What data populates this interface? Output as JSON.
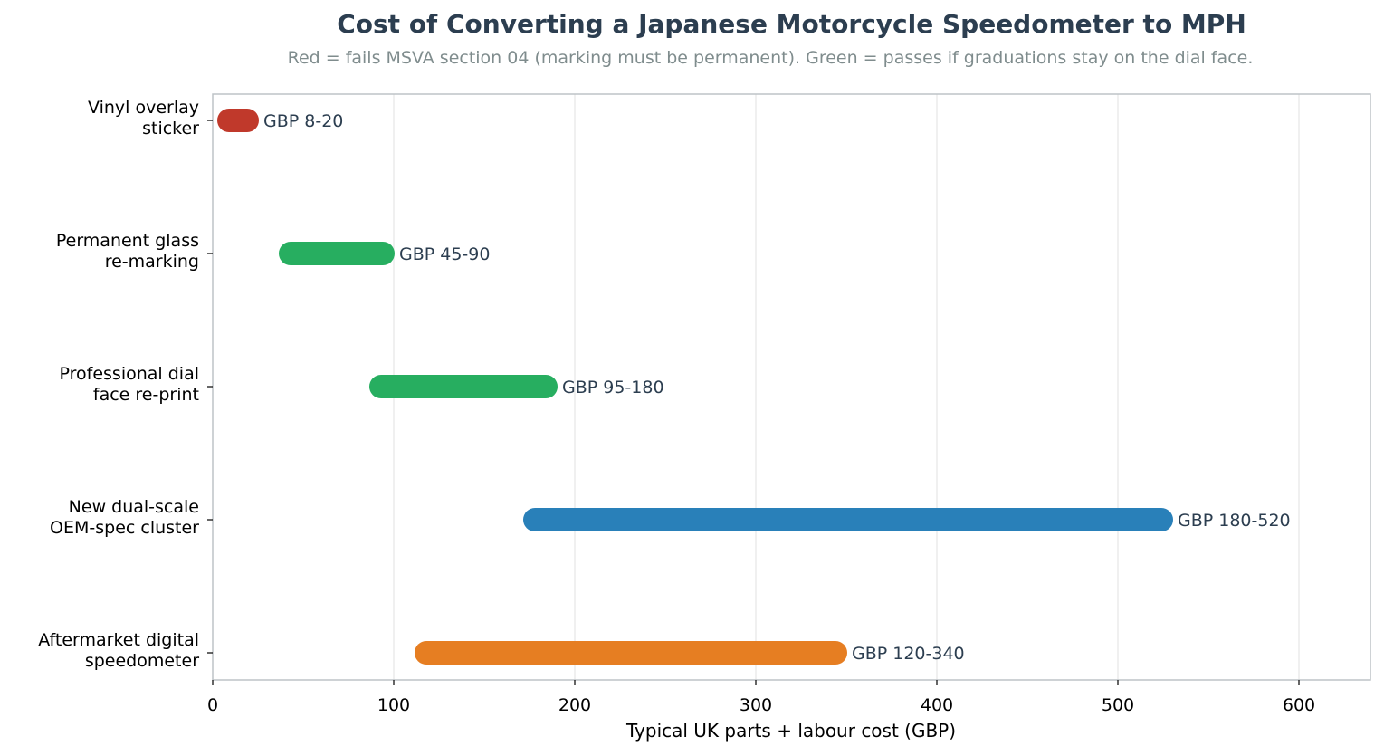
{
  "chart_data": {
    "type": "range-bar",
    "title": "Cost of Converting a Japanese Motorcycle Speedometer to MPH",
    "subtitle": "Red = fails MSVA section 04 (marking must be permanent). Green = passes if graduations stay on the dial face.",
    "xlabel": "Typical UK parts + labour cost (GBP)",
    "ylabel": "",
    "xlim": [
      0,
      640
    ],
    "xticks": [
      0,
      100,
      200,
      300,
      400,
      500,
      600
    ],
    "grid": "vertical",
    "categories": [
      {
        "label": "Vinyl overlay sticker",
        "lines": [
          "Vinyl overlay",
          "sticker"
        ],
        "low": 8,
        "high": 20,
        "bar_start": 8,
        "bar_end": 20,
        "label_text": "GBP 8-20",
        "color": "#c0392b"
      },
      {
        "label": "Permanent glass re-marking",
        "lines": [
          "Permanent glass",
          "re-marking"
        ],
        "low": 45,
        "high": 90,
        "bar_start": 42,
        "bar_end": 95,
        "label_text": "GBP 45-90",
        "color": "#27ae60"
      },
      {
        "label": "Professional dial face re-print",
        "lines": [
          "Professional dial",
          "face re-print"
        ],
        "low": 95,
        "high": 180,
        "bar_start": 92,
        "bar_end": 185,
        "label_text": "GBP 95-180",
        "color": "#27ae60"
      },
      {
        "label": "New dual-scale OEM-spec cluster",
        "lines": [
          "New dual-scale",
          "OEM-spec cluster"
        ],
        "low": 180,
        "high": 520,
        "bar_start": 177,
        "bar_end": 525,
        "label_text": "GBP 180-520",
        "color": "#2980b9"
      },
      {
        "label": "Aftermarket digital speedometer",
        "lines": [
          "Aftermarket digital",
          "speedometer"
        ],
        "low": 120,
        "high": 340,
        "bar_start": 117,
        "bar_end": 345,
        "label_text": "GBP 120-340",
        "color": "#e67e22"
      }
    ]
  },
  "colors": {
    "title": "#2c3e50",
    "subtitle": "#7f8c8d",
    "grid": "#e5e5e5",
    "frame": "#bdc3c7"
  }
}
